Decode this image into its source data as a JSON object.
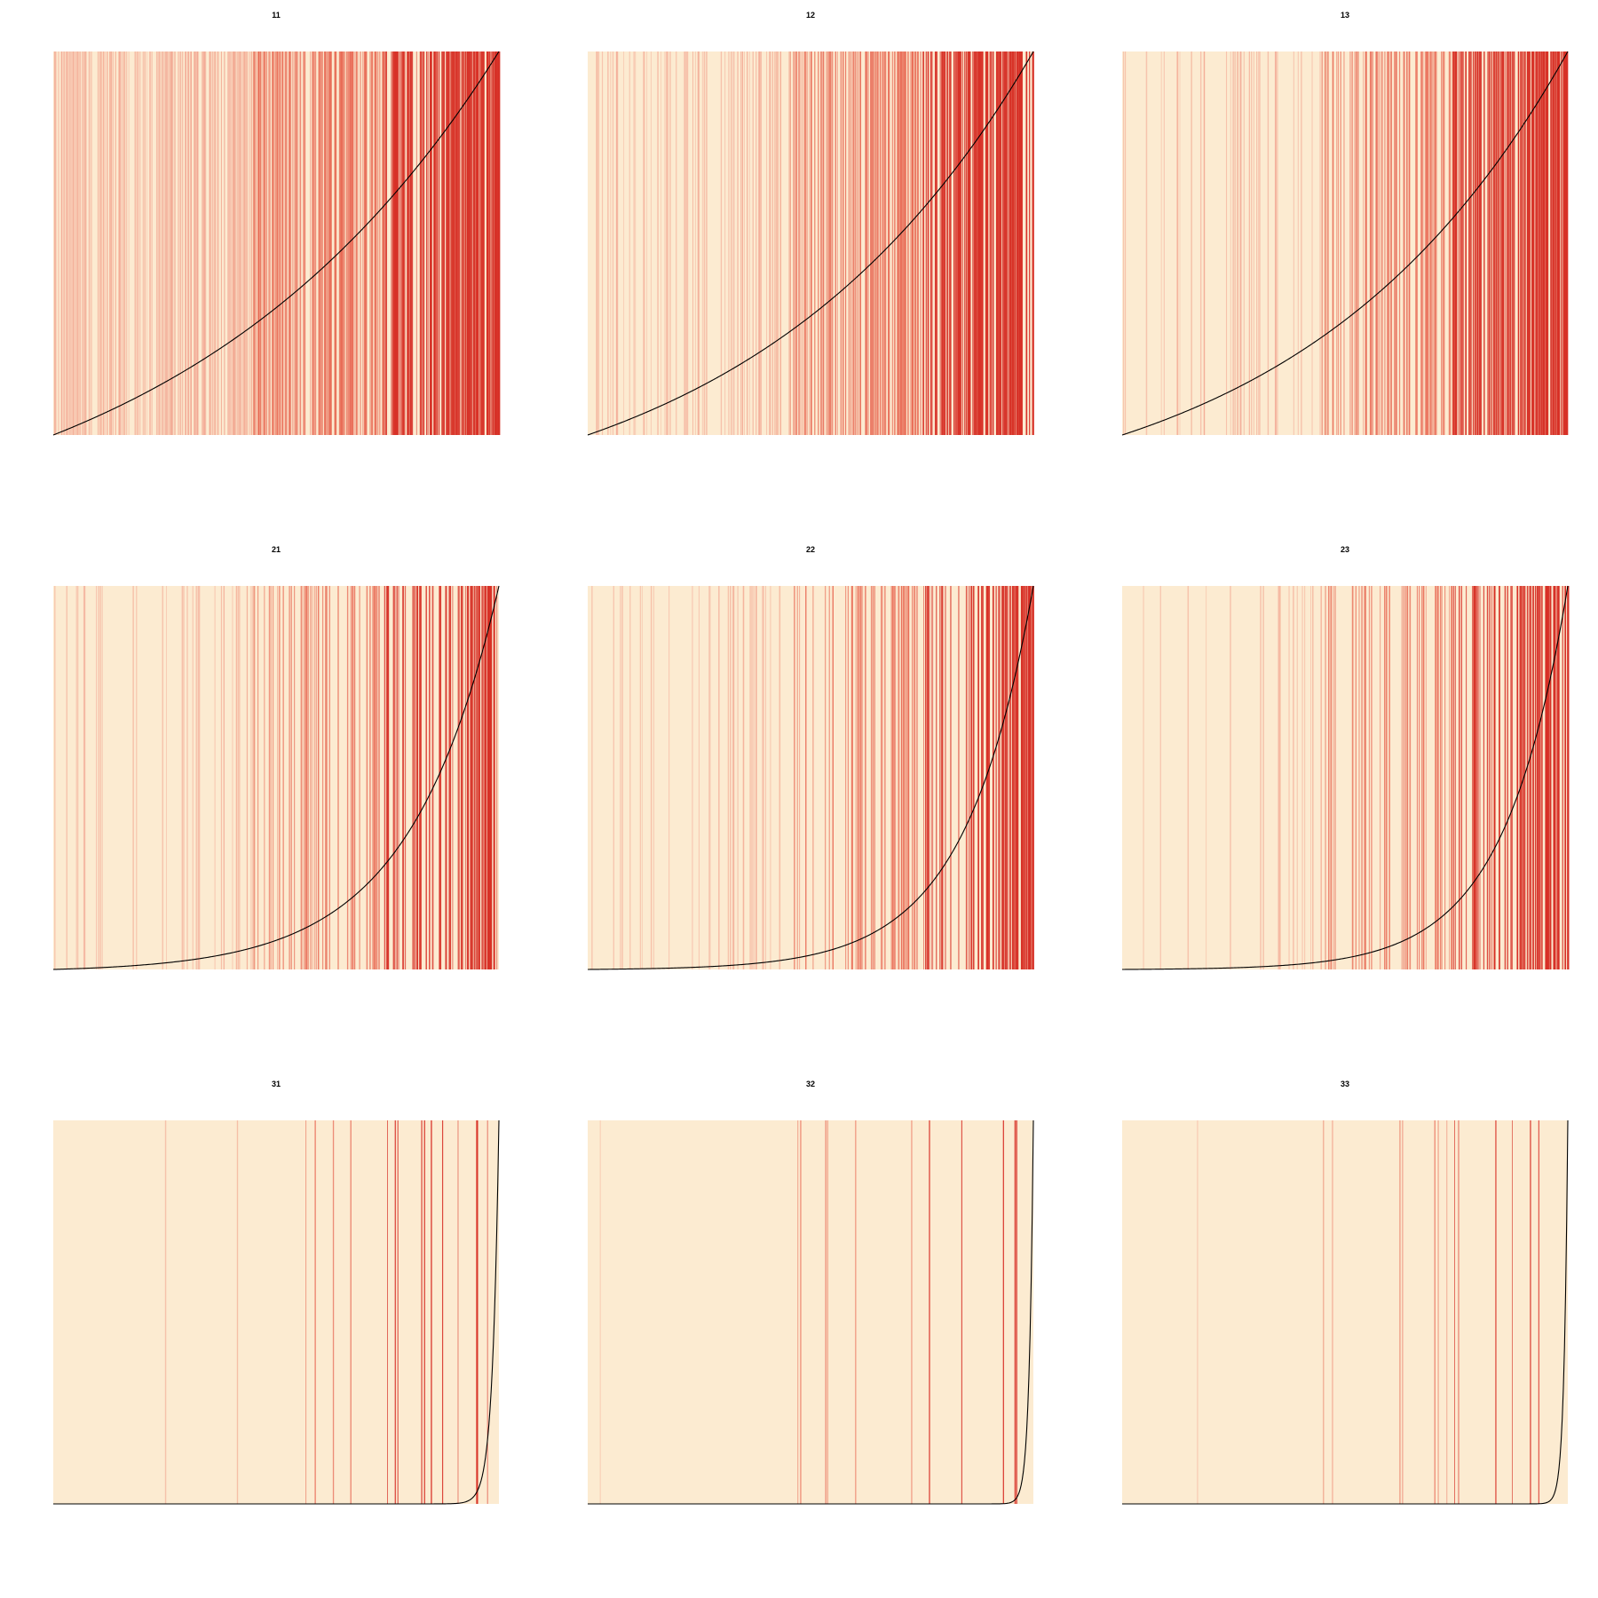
{
  "colors": {
    "background": "#fcebd1",
    "stripe_light": "#f2a48f",
    "stripe_mid": "#e86a55",
    "stripe_dense": "#d73127",
    "curve": "#000000"
  },
  "chart_data": [
    {
      "type": "line",
      "title": "11",
      "curve_shape": "near-linear, slight upward bend",
      "stripe_density": "very high, nearly saturated on right"
    },
    {
      "type": "line",
      "title": "21",
      "curve_shape": "convex, rising steeply at right",
      "stripe_density": "medium, increasing toward right"
    },
    {
      "type": "line",
      "title": "31",
      "curve_shape": "flat then vertical spike at far right",
      "stripe_density": "sparse, clustered at far right"
    },
    {
      "type": "line",
      "title": "12",
      "curve_shape": "near-linear, slight upward bend",
      "stripe_density": "high, saturated in right half"
    },
    {
      "type": "line",
      "title": "22",
      "curve_shape": "convex, rising steeply at right",
      "stripe_density": "medium, dense in right quarter"
    },
    {
      "type": "line",
      "title": "32",
      "curve_shape": "flat then vertical spike at far right",
      "stripe_density": "very sparse, clustered at far right"
    },
    {
      "type": "line",
      "title": "13",
      "curve_shape": "near-linear, slight upward bend",
      "stripe_density": "high, saturated in right half"
    },
    {
      "type": "line",
      "title": "23",
      "curve_shape": "convex, rising steeply at right",
      "stripe_density": "sparse, dense in right quarter"
    },
    {
      "type": "line",
      "title": "33",
      "curve_shape": "flat then vertical spike at far right",
      "stripe_density": "very sparse, clustered at far right"
    }
  ]
}
